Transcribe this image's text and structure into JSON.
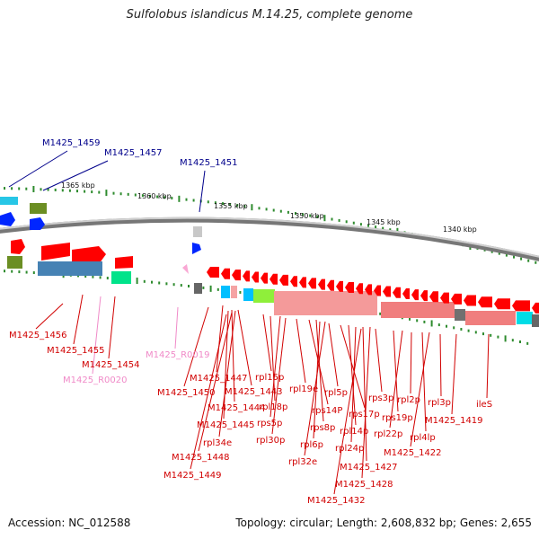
{
  "title": "Sulfolobus islandicus M.14.25, complete genome",
  "footer": {
    "accession": "Accession: NC_012588",
    "summary": "Topology: circular; Length: 2,608,832 bp; Genes: 2,655"
  },
  "colors": {
    "forward_gene": "#ff0000",
    "rna_gene": "#f9a8d4",
    "label_red": "#d10000",
    "label_pink": "#f08ac8",
    "label_blue": "#00008b",
    "backbone": "#888888",
    "tick": "#2e8b2e"
  },
  "ticks": [
    "1365 kbp",
    "1360 kbp",
    "1355 kbp",
    "1350 kbp",
    "1345 kbp",
    "1340 kbp"
  ],
  "labels_top": [
    "M1425_1459",
    "M1425_1457",
    "M1425_1451"
  ],
  "labels_bottom": [
    {
      "text": "M1425_1456",
      "color": "red"
    },
    {
      "text": "M1425_1455",
      "color": "red"
    },
    {
      "text": "M1425_1454",
      "color": "red"
    },
    {
      "text": "M1425_R0020",
      "color": "pink"
    },
    {
      "text": "M1425_R0019",
      "color": "pink"
    },
    {
      "text": "M1425_1447",
      "color": "red"
    },
    {
      "text": "M1425_1450",
      "color": "red"
    },
    {
      "text": "M1425_1443",
      "color": "red"
    },
    {
      "text": "M1425_1444",
      "color": "red"
    },
    {
      "text": "M1425_1445",
      "color": "red"
    },
    {
      "text": "rpl34e",
      "color": "red"
    },
    {
      "text": "M1425_1448",
      "color": "red"
    },
    {
      "text": "M1425_1449",
      "color": "red"
    },
    {
      "text": "rpl15p",
      "color": "red"
    },
    {
      "text": "rpl18p",
      "color": "red"
    },
    {
      "text": "rps5p",
      "color": "red"
    },
    {
      "text": "rpl30p",
      "color": "red"
    },
    {
      "text": "rpl19e",
      "color": "red"
    },
    {
      "text": "rps14P",
      "color": "red"
    },
    {
      "text": "rps8p",
      "color": "red"
    },
    {
      "text": "rpl6p",
      "color": "red"
    },
    {
      "text": "rpl32e",
      "color": "red"
    },
    {
      "text": "rpl5p",
      "color": "red"
    },
    {
      "text": "rps17p",
      "color": "red"
    },
    {
      "text": "rpl14p",
      "color": "red"
    },
    {
      "text": "rpl24p",
      "color": "red"
    },
    {
      "text": "M1425_1427",
      "color": "red"
    },
    {
      "text": "M1425_1428",
      "color": "red"
    },
    {
      "text": "M1425_1432",
      "color": "red"
    },
    {
      "text": "rps3p",
      "color": "red"
    },
    {
      "text": "rps19p",
      "color": "red"
    },
    {
      "text": "rpl22p",
      "color": "red"
    },
    {
      "text": "rpl2p",
      "color": "red"
    },
    {
      "text": "rpl4lp",
      "color": "red"
    },
    {
      "text": "M1425_1422",
      "color": "red"
    },
    {
      "text": "rpl3p",
      "color": "red"
    },
    {
      "text": "M1425_1419",
      "color": "red"
    },
    {
      "text": "ileS",
      "color": "red"
    }
  ]
}
